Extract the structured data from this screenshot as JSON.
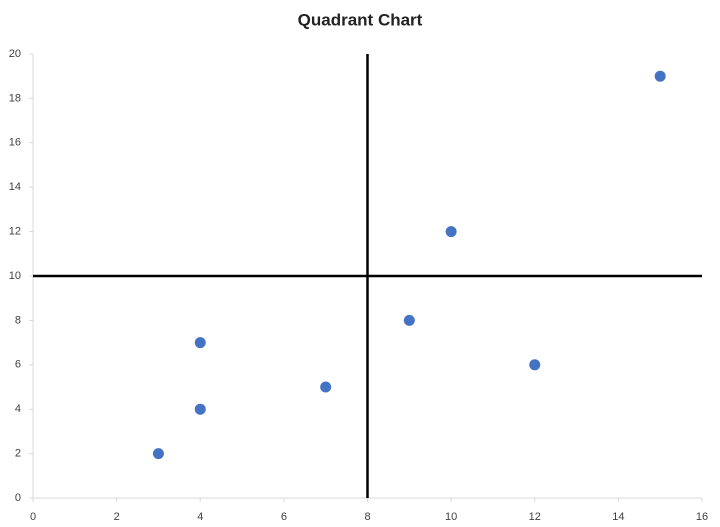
{
  "chart_data": {
    "type": "scatter",
    "title": "Quadrant Chart",
    "x": [
      3,
      4,
      4,
      7,
      9,
      10,
      12,
      15
    ],
    "values": [
      2,
      4,
      7,
      5,
      8,
      12,
      6,
      19
    ],
    "color": "#4472c4",
    "xlim": [
      0,
      16
    ],
    "xticks": [
      0,
      2,
      4,
      6,
      8,
      10,
      12,
      14,
      16
    ],
    "ylim": [
      0,
      20
    ],
    "yticks": [
      0,
      2,
      4,
      6,
      8,
      10,
      12,
      14,
      16,
      18,
      20
    ],
    "quadrant_x": 8,
    "quadrant_y": 10,
    "grid": false
  }
}
